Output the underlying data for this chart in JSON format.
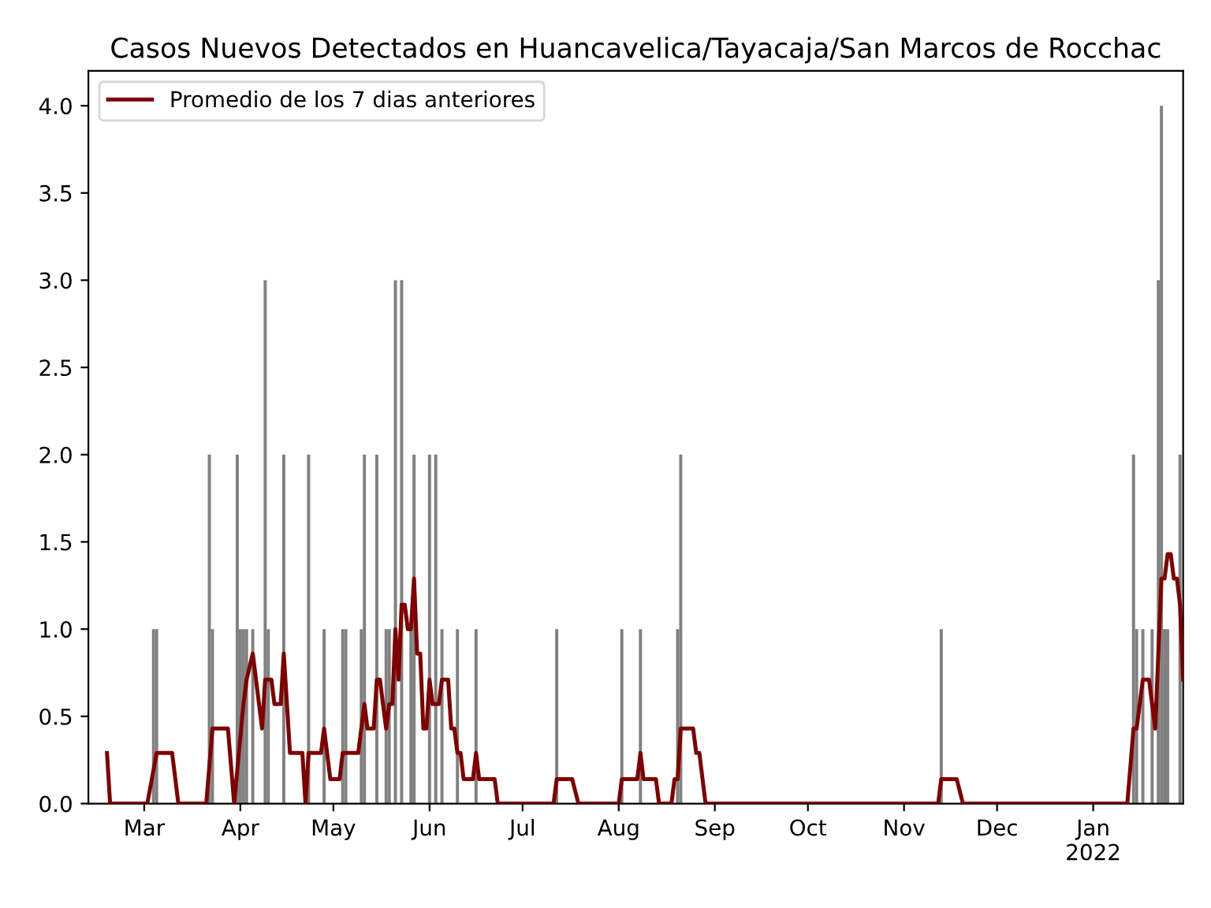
{
  "chart_data": {
    "type": "bar",
    "title": "Casos Nuevos Detectados en Huancavelica/Tayacaja/San Marcos de Rocchac",
    "series": [
      {
        "color": "#808080",
        "x": [
          "2021-03-04",
          "2021-03-05",
          "2021-03-22",
          "2021-03-23",
          "2021-03-31",
          "2021-04-01",
          "2021-04-02",
          "2021-04-03",
          "2021-04-05",
          "2021-04-09",
          "2021-04-10",
          "2021-04-15",
          "2021-04-23",
          "2021-04-28",
          "2021-05-04",
          "2021-05-05",
          "2021-05-10",
          "2021-05-11",
          "2021-05-15",
          "2021-05-18",
          "2021-05-19",
          "2021-05-21",
          "2021-05-23",
          "2021-05-26",
          "2021-05-27",
          "2021-06-01",
          "2021-06-03",
          "2021-06-05",
          "2021-06-10",
          "2021-06-16",
          "2021-07-12",
          "2021-08-02",
          "2021-08-08",
          "2021-08-20",
          "2021-08-21",
          "2021-11-13",
          "2022-01-14",
          "2022-01-15",
          "2022-01-17",
          "2022-01-20",
          "2022-01-22",
          "2022-01-23",
          "2022-01-24",
          "2022-01-25",
          "2022-01-29"
        ],
        "values": [
          1,
          1,
          2,
          1,
          2,
          1,
          1,
          1,
          1,
          3,
          1,
          2,
          2,
          1,
          1,
          1,
          1,
          2,
          2,
          1,
          1,
          3,
          3,
          1,
          2,
          2,
          2,
          1,
          1,
          1,
          1,
          1,
          1,
          1,
          2,
          1,
          2,
          1,
          1,
          1,
          3,
          4,
          1,
          1,
          2
        ]
      },
      {
        "type": "line",
        "name": "Promedio de los 7 dias anteriores",
        "color": "#800000",
        "x": [
          "2021-02-17",
          "2021-02-18",
          "2021-03-02",
          "2021-03-05",
          "2021-03-10",
          "2021-03-12",
          "2021-03-21",
          "2021-03-23",
          "2021-03-28",
          "2021-03-30",
          "2021-04-02",
          "2021-04-03",
          "2021-04-05",
          "2021-04-08",
          "2021-04-09",
          "2021-04-11",
          "2021-04-12",
          "2021-04-14",
          "2021-04-15",
          "2021-04-17",
          "2021-04-21",
          "2021-04-22",
          "2021-04-23",
          "2021-04-27",
          "2021-04-28",
          "2021-04-30",
          "2021-05-03",
          "2021-05-04",
          "2021-05-09",
          "2021-05-11",
          "2021-05-12",
          "2021-05-14",
          "2021-05-15",
          "2021-05-16",
          "2021-05-18",
          "2021-05-19",
          "2021-05-20",
          "2021-05-21",
          "2021-05-22",
          "2021-05-23",
          "2021-05-24",
          "2021-05-25",
          "2021-05-26",
          "2021-05-27",
          "2021-05-28",
          "2021-05-29",
          "2021-05-30",
          "2021-05-31",
          "2021-06-01",
          "2021-06-02",
          "2021-06-04",
          "2021-06-05",
          "2021-06-07",
          "2021-06-08",
          "2021-06-09",
          "2021-06-10",
          "2021-06-11",
          "2021-06-12",
          "2021-06-15",
          "2021-06-16",
          "2021-06-17",
          "2021-06-22",
          "2021-06-23",
          "2021-07-11",
          "2021-07-12",
          "2021-07-17",
          "2021-07-19",
          "2021-08-01",
          "2021-08-02",
          "2021-08-07",
          "2021-08-08",
          "2021-08-09",
          "2021-08-13",
          "2021-08-14",
          "2021-08-18",
          "2021-08-19",
          "2021-08-20",
          "2021-08-21",
          "2021-08-25",
          "2021-08-26",
          "2021-08-27",
          "2021-08-29",
          "2021-11-12",
          "2021-11-13",
          "2021-11-18",
          "2021-11-20",
          "2022-01-12",
          "2022-01-14",
          "2022-01-15",
          "2022-01-17",
          "2022-01-19",
          "2022-01-21",
          "2022-01-23",
          "2022-01-24",
          "2022-01-25",
          "2022-01-26",
          "2022-01-27",
          "2022-01-28",
          "2022-01-29",
          "2022-01-30"
        ],
        "values": [
          0.29,
          0,
          0,
          0.29,
          0.29,
          0,
          0,
          0.43,
          0.43,
          0,
          0.57,
          0.71,
          0.86,
          0.43,
          0.71,
          0.71,
          0.57,
          0.57,
          0.86,
          0.29,
          0.29,
          0,
          0.29,
          0.29,
          0.43,
          0.14,
          0.14,
          0.29,
          0.29,
          0.57,
          0.43,
          0.43,
          0.71,
          0.71,
          0.43,
          0.57,
          0.57,
          1.0,
          0.71,
          1.14,
          1.14,
          1.0,
          1.0,
          1.29,
          0.86,
          0.86,
          0.43,
          0.43,
          0.71,
          0.57,
          0.57,
          0.71,
          0.71,
          0.43,
          0.43,
          0.29,
          0.29,
          0.14,
          0.14,
          0.29,
          0.14,
          0.14,
          0,
          0,
          0.14,
          0.14,
          0,
          0,
          0.14,
          0.14,
          0.29,
          0.14,
          0.14,
          0,
          0,
          0.14,
          0.14,
          0.43,
          0.43,
          0.29,
          0.29,
          0,
          0,
          0.14,
          0.14,
          0,
          0,
          0.43,
          0.43,
          0.71,
          0.71,
          0.43,
          1.29,
          1.29,
          1.43,
          1.43,
          1.29,
          1.29,
          1.14,
          0.71
        ]
      }
    ],
    "xlim": [
      "2021-02-11",
      "2022-01-30"
    ],
    "xticks": [
      {
        "value": "2021-03-01",
        "label": "Mar"
      },
      {
        "value": "2021-04-01",
        "label": "Apr"
      },
      {
        "value": "2021-05-01",
        "label": "May"
      },
      {
        "value": "2021-06-01",
        "label": "Jun"
      },
      {
        "value": "2021-07-01",
        "label": "Jul"
      },
      {
        "value": "2021-08-01",
        "label": "Aug"
      },
      {
        "value": "2021-09-01",
        "label": "Sep"
      },
      {
        "value": "2021-10-01",
        "label": "Oct"
      },
      {
        "value": "2021-11-01",
        "label": "Nov"
      },
      {
        "value": "2021-12-01",
        "label": "Dec"
      },
      {
        "value": "2022-01-01",
        "label": "Jan\n2022"
      }
    ],
    "ylim": [
      0,
      4.2
    ],
    "yticks": [
      {
        "value": 0,
        "label": "0.0"
      },
      {
        "value": 0.5,
        "label": "0.5"
      },
      {
        "value": 1,
        "label": "1.0"
      },
      {
        "value": 1.5,
        "label": "1.5"
      },
      {
        "value": 2,
        "label": "2.0"
      },
      {
        "value": 2.5,
        "label": "2.5"
      },
      {
        "value": 3,
        "label": "3.0"
      },
      {
        "value": 3.5,
        "label": "3.5"
      },
      {
        "value": 4,
        "label": "4.0"
      }
    ],
    "legend": "top left",
    "grid": false
  }
}
